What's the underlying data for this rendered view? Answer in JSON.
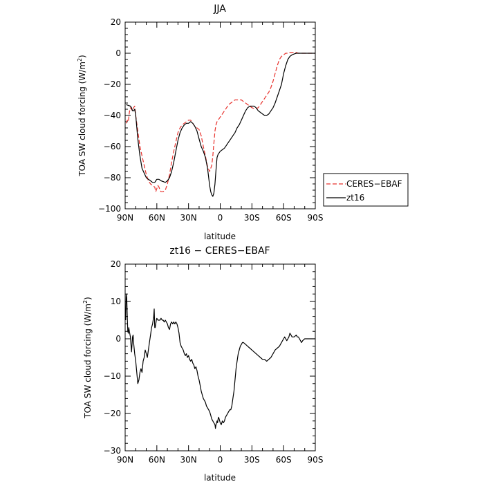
{
  "chart_data": [
    {
      "type": "line",
      "title": "JJA",
      "xlabel": "latitude",
      "ylabel": "TOA SW cloud forcing (W/m",
      "ylabel_sup": "2",
      "ylabel_end": ")",
      "xlim": [
        90,
        -90
      ],
      "ylim": [
        -100,
        20
      ],
      "xticks": [
        90,
        60,
        30,
        0,
        -30,
        -60,
        -90
      ],
      "xtick_labels": [
        "90N",
        "60N",
        "30N",
        "0",
        "30S",
        "60S",
        "90S"
      ],
      "yticks": [
        -100,
        -80,
        -60,
        -40,
        -20,
        0,
        20
      ],
      "ytick_labels": [
        "−100",
        "−80",
        "−60",
        "−40",
        "−20",
        "0",
        "20"
      ],
      "grid": false,
      "legend_position": "outside-right",
      "series": [
        {
          "name": "CERES−EBAF",
          "color": "#e8312c",
          "dash": "dashed",
          "x": [
            89,
            88,
            87,
            86,
            85,
            84,
            83,
            82,
            81,
            80,
            78,
            76,
            74,
            72,
            70,
            68,
            66,
            64,
            62,
            61,
            60,
            59,
            58,
            57,
            56,
            54,
            52,
            50,
            48,
            46,
            44,
            42,
            40,
            38,
            36,
            34,
            32,
            30,
            28,
            26,
            24,
            22,
            20,
            18,
            16,
            14,
            12,
            10,
            8,
            7,
            6,
            5,
            4,
            3,
            2,
            0,
            -2,
            -4,
            -6,
            -8,
            -10,
            -12,
            -14,
            -16,
            -18,
            -20,
            -22,
            -24,
            -26,
            -28,
            -30,
            -32,
            -34,
            -36,
            -38,
            -40,
            -42,
            -44,
            -46,
            -48,
            -50,
            -52,
            -54,
            -56,
            -58,
            -60,
            -62,
            -64,
            -66,
            -68,
            -70,
            -72,
            -74,
            -76,
            -78,
            -80,
            -82,
            -84,
            -86,
            -88,
            -90
          ],
          "y": [
            -45,
            -43,
            -44,
            -38,
            -35,
            -36,
            -37,
            -35,
            -34,
            -40,
            -50,
            -60,
            -66,
            -72,
            -78,
            -82,
            -84,
            -85,
            -86,
            -89,
            -87,
            -85,
            -86,
            -88,
            -89,
            -89,
            -88,
            -84,
            -78,
            -70,
            -63,
            -57,
            -51,
            -48,
            -46,
            -45,
            -44,
            -43,
            -43,
            -45,
            -47,
            -48,
            -49,
            -53,
            -60,
            -66,
            -73,
            -76,
            -72,
            -66,
            -58,
            -50,
            -46,
            -44,
            -43,
            -41,
            -39,
            -37,
            -35,
            -33,
            -32,
            -31,
            -30,
            -30,
            -30,
            -30,
            -31,
            -32,
            -33,
            -34,
            -35,
            -35.5,
            -35.5,
            -35,
            -33,
            -31,
            -29,
            -27,
            -25,
            -22,
            -18,
            -13,
            -8,
            -4,
            -2,
            -1,
            0,
            0,
            0.5,
            0.5,
            0.5,
            0.5,
            0,
            0,
            0,
            0,
            0,
            0,
            0,
            0,
            0
          ]
        },
        {
          "name": "zt16",
          "color": "#000000",
          "dash": "solid",
          "x": [
            89,
            87,
            85,
            84,
            83,
            82,
            81,
            80,
            78,
            76,
            74,
            72,
            70,
            68,
            66,
            64,
            62,
            61,
            60,
            59,
            58,
            57,
            56,
            54,
            52,
            50,
            48,
            46,
            44,
            42,
            40,
            38,
            36,
            34,
            32,
            30,
            28,
            26,
            24,
            22,
            20,
            18,
            16,
            14,
            12,
            10,
            9,
            8,
            7,
            6,
            5,
            4,
            3,
            2,
            0,
            -2,
            -4,
            -6,
            -8,
            -10,
            -12,
            -14,
            -16,
            -18,
            -20,
            -22,
            -24,
            -26,
            -28,
            -30,
            -32,
            -34,
            -36,
            -38,
            -40,
            -42,
            -44,
            -46,
            -48,
            -50,
            -52,
            -54,
            -56,
            -58,
            -60,
            -62,
            -64,
            -66,
            -68,
            -70,
            -72,
            -74,
            -76,
            -78,
            -80,
            -82,
            -84,
            -86,
            -88,
            -90
          ],
          "y": [
            -33,
            -33.5,
            -34,
            -35,
            -37,
            -37,
            -36,
            -40,
            -55,
            -66,
            -74,
            -77,
            -80,
            -81,
            -82,
            -83,
            -83,
            -82,
            -81,
            -81,
            -81,
            -81.5,
            -82,
            -82.5,
            -83,
            -82,
            -80,
            -76,
            -70,
            -63,
            -56,
            -51,
            -48,
            -46,
            -45,
            -45,
            -44,
            -45,
            -47,
            -50,
            -55,
            -60,
            -63,
            -67,
            -74,
            -85,
            -89,
            -91,
            -92,
            -90,
            -84,
            -75,
            -67,
            -65,
            -63,
            -62,
            -61,
            -59,
            -57,
            -55,
            -53,
            -51,
            -48,
            -46,
            -43,
            -40,
            -37,
            -35,
            -34,
            -34,
            -34,
            -35,
            -37,
            -38,
            -39,
            -40,
            -40,
            -39,
            -37,
            -35,
            -32,
            -28,
            -24,
            -20,
            -13,
            -8,
            -4,
            -2,
            -1,
            -0.5,
            0,
            0,
            0,
            0,
            0,
            0,
            0,
            0,
            0,
            0
          ]
        }
      ]
    },
    {
      "type": "line",
      "title": "zt16 − CERES−EBAF",
      "xlabel": "latitude",
      "ylabel": "TOA SW cloud forcing (W/m",
      "ylabel_sup": "2",
      "ylabel_end": ")",
      "xlim": [
        90,
        -90
      ],
      "ylim": [
        -30,
        20
      ],
      "xticks": [
        90,
        60,
        30,
        0,
        -30,
        -60,
        -90
      ],
      "xtick_labels": [
        "90N",
        "60N",
        "30N",
        "0",
        "30S",
        "60S",
        "90S"
      ],
      "yticks": [
        -30,
        -20,
        -10,
        0,
        10,
        20
      ],
      "ytick_labels": [
        "−30",
        "−20",
        "−10",
        "0",
        "10",
        "20"
      ],
      "grid": false,
      "series": [
        {
          "name": "",
          "color": "#000000",
          "dash": "solid",
          "x": [
            89.5,
            89,
            88.5,
            88,
            87.5,
            87,
            86.5,
            86,
            85,
            84,
            83,
            82.5,
            82,
            81,
            80,
            79,
            78,
            77,
            76,
            75,
            74,
            73,
            72,
            71,
            70,
            69,
            68,
            67,
            66,
            65,
            64,
            63,
            62.5,
            62,
            61.5,
            61,
            60.5,
            60,
            59,
            58,
            57,
            56,
            55,
            54,
            53,
            52,
            51,
            50,
            49,
            48,
            47,
            46,
            45,
            44,
            43,
            42,
            41,
            40,
            39,
            38,
            37,
            36,
            35,
            34,
            33,
            32,
            31,
            30,
            29,
            28,
            27,
            26,
            25,
            24,
            23,
            22,
            21,
            20,
            19,
            18,
            17,
            16,
            15,
            14,
            13,
            12,
            11,
            10,
            9,
            8,
            7,
            6,
            5,
            4.5,
            4,
            3.5,
            3,
            2.5,
            2,
            1.5,
            1,
            0,
            -1,
            -2,
            -3,
            -4,
            -5,
            -6,
            -7,
            -8,
            -9,
            -10,
            -11,
            -12,
            -13,
            -14,
            -15,
            -16,
            -17,
            -18,
            -19,
            -20,
            -21,
            -22,
            -24,
            -26,
            -28,
            -30,
            -32,
            -34,
            -36,
            -38,
            -40,
            -42,
            -44,
            -46,
            -48,
            -50,
            -52,
            -54,
            -56,
            -57,
            -58,
            -59,
            -60,
            -61,
            -62,
            -63,
            -64,
            -65,
            -66,
            -67,
            -68,
            -70,
            -72,
            -73,
            -74,
            -75,
            -76,
            -77,
            -78,
            -80,
            -82,
            -84,
            -86,
            -88,
            -90
          ],
          "y": [
            5,
            12,
            11,
            6,
            2,
            1.5,
            3,
            2,
            0.5,
            -3.5,
            0.5,
            1,
            -1,
            -4,
            -6,
            -9,
            -12,
            -11,
            -9,
            -8,
            -9,
            -6,
            -5,
            -3,
            -4,
            -5,
            -3,
            -1,
            1,
            3,
            4,
            6,
            8,
            3,
            3,
            4,
            5,
            5.5,
            5,
            5,
            5,
            5.5,
            5,
            5,
            4.5,
            5,
            4.5,
            4,
            3,
            2.5,
            4,
            4.5,
            4,
            4.5,
            4,
            4.5,
            4,
            3,
            1.5,
            -1,
            -2,
            -2.5,
            -3,
            -4,
            -4.5,
            -4,
            -5,
            -4.5,
            -5.5,
            -6,
            -5.5,
            -6.5,
            -7,
            -8,
            -7.5,
            -8.5,
            -10,
            -11,
            -12.5,
            -14,
            -15,
            -16,
            -16.5,
            -17,
            -18,
            -18.5,
            -19,
            -19.5,
            -20.5,
            -21.5,
            -22,
            -22.5,
            -23,
            -24,
            -23,
            -22.5,
            -22,
            -22.5,
            -21.5,
            -21,
            -21.5,
            -22.5,
            -23,
            -22,
            -22.5,
            -22,
            -21,
            -20.5,
            -20,
            -19.5,
            -19,
            -19,
            -18,
            -16,
            -14,
            -11,
            -8,
            -6,
            -4,
            -3,
            -2,
            -1.5,
            -1,
            -1,
            -1.5,
            -2,
            -2.5,
            -3,
            -3.5,
            -4,
            -4.5,
            -5,
            -5.5,
            -5.5,
            -6,
            -5.5,
            -5,
            -4,
            -3,
            -2.5,
            -2,
            -1.5,
            -1,
            -0.5,
            0,
            0.5,
            0,
            -0.5,
            0,
            0.5,
            1.5,
            1,
            0.5,
            0.5,
            1,
            0.5,
            0.5,
            0,
            -0.5,
            -1,
            -0.5,
            0,
            0,
            0,
            0,
            0,
            0
          ]
        }
      ]
    }
  ]
}
